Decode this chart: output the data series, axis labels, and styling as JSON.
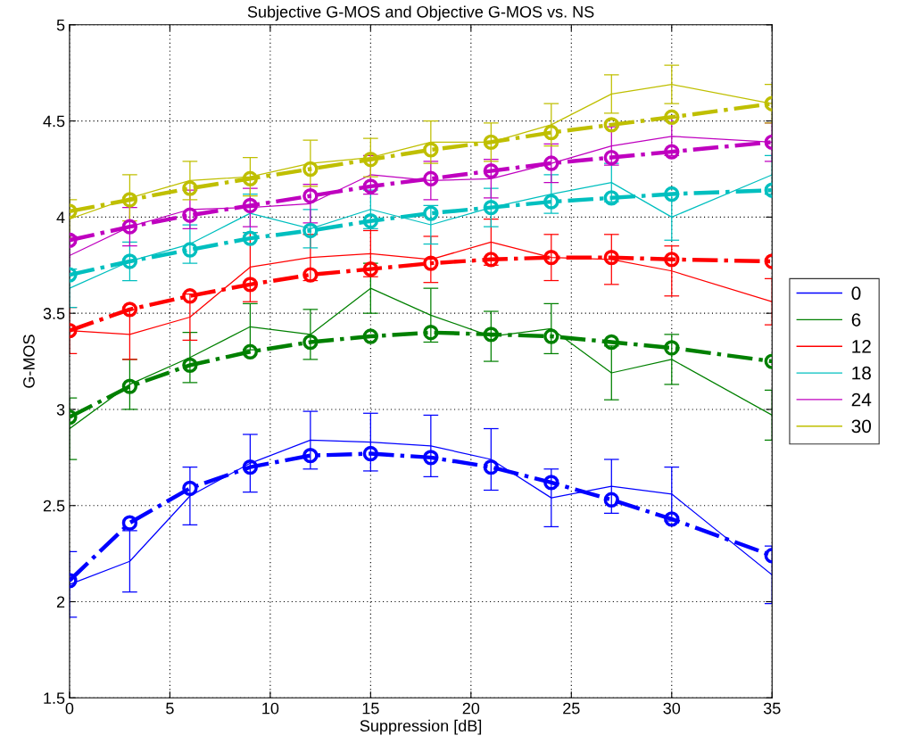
{
  "chart_data": {
    "type": "line",
    "title": "Subjective G-MOS and Objective G-MOS vs. NS",
    "xlabel": "Suppression [dB]",
    "ylabel": "G-MOS",
    "x": [
      0,
      3,
      6,
      9,
      12,
      15,
      18,
      21,
      24,
      27,
      30,
      35
    ],
    "xlim": [
      0,
      35
    ],
    "xticks": [
      0,
      5,
      10,
      15,
      20,
      25,
      30,
      35
    ],
    "ylim": [
      1.5,
      5
    ],
    "yticks": [
      1.5,
      2,
      2.5,
      3,
      3.5,
      4,
      4.5,
      5
    ],
    "grid": true,
    "legend": "right",
    "series": [
      {
        "name": "0",
        "color": "#0000ff",
        "line_style": "solid",
        "marker": "none",
        "values": [
          2.09,
          2.21,
          2.55,
          2.72,
          2.84,
          2.83,
          2.81,
          2.74,
          2.54,
          2.6,
          2.56,
          2.14
        ],
        "errors": [
          0.17,
          0.16,
          0.15,
          0.15,
          0.15,
          0.15,
          0.16,
          0.16,
          0.15,
          0.14,
          0.14,
          0.15
        ]
      },
      {
        "name": "6",
        "color": "#008000",
        "line_style": "solid",
        "marker": "none",
        "values": [
          2.9,
          3.13,
          3.27,
          3.43,
          3.39,
          3.63,
          3.49,
          3.38,
          3.42,
          3.19,
          3.26,
          2.97
        ],
        "errors": [
          0.16,
          0.13,
          0.13,
          0.12,
          0.13,
          0.13,
          0.14,
          0.13,
          0.13,
          0.14,
          0.13,
          0.13
        ]
      },
      {
        "name": "12",
        "color": "#ff0000",
        "line_style": "solid",
        "marker": "none",
        "values": [
          3.41,
          3.39,
          3.48,
          3.74,
          3.79,
          3.81,
          3.78,
          3.87,
          3.79,
          3.78,
          3.72,
          3.56
        ],
        "errors": [
          0.12,
          0.13,
          0.12,
          0.18,
          0.12,
          0.12,
          0.12,
          0.12,
          0.12,
          0.13,
          0.13,
          0.12
        ]
      },
      {
        "name": "18",
        "color": "#00bfbf",
        "line_style": "solid",
        "marker": "none",
        "values": [
          3.63,
          3.77,
          3.86,
          4.02,
          3.94,
          4.04,
          3.96,
          4.05,
          4.12,
          4.18,
          4.0,
          4.22
        ],
        "errors": [
          0.1,
          0.1,
          0.1,
          0.1,
          0.1,
          0.1,
          0.1,
          0.1,
          0.1,
          0.1,
          0.12,
          0.1
        ]
      },
      {
        "name": "24",
        "color": "#bf00bf",
        "line_style": "solid",
        "marker": "none",
        "values": [
          3.8,
          3.95,
          4.04,
          4.05,
          4.07,
          4.22,
          4.19,
          4.2,
          4.28,
          4.37,
          4.42,
          4.39
        ],
        "errors": [
          0.1,
          0.1,
          0.1,
          0.1,
          0.1,
          0.1,
          0.1,
          0.1,
          0.1,
          0.1,
          0.1,
          0.1
        ]
      },
      {
        "name": "30",
        "color": "#bfbf00",
        "line_style": "solid",
        "marker": "none",
        "values": [
          3.99,
          4.1,
          4.19,
          4.21,
          4.28,
          4.31,
          4.39,
          4.39,
          4.48,
          4.64,
          4.69,
          4.59
        ],
        "errors": [
          0.1,
          0.12,
          0.1,
          0.1,
          0.12,
          0.1,
          0.11,
          0.1,
          0.11,
          0.1,
          0.1,
          0.1
        ]
      },
      {
        "color": "#0000ff",
        "line_style": "dashdot",
        "marker": "circle",
        "values": [
          2.11,
          2.41,
          2.59,
          2.7,
          2.76,
          2.77,
          2.75,
          2.7,
          2.62,
          2.53,
          2.43,
          2.24
        ]
      },
      {
        "color": "#008000",
        "line_style": "dashdot",
        "marker": "circle",
        "values": [
          2.96,
          3.12,
          3.23,
          3.3,
          3.35,
          3.38,
          3.4,
          3.39,
          3.38,
          3.35,
          3.32,
          3.25
        ]
      },
      {
        "color": "#ff0000",
        "line_style": "dashdot",
        "marker": "circle",
        "values": [
          3.41,
          3.52,
          3.59,
          3.65,
          3.7,
          3.73,
          3.76,
          3.78,
          3.79,
          3.79,
          3.78,
          3.77
        ]
      },
      {
        "color": "#00bfbf",
        "line_style": "dashdot",
        "marker": "circle",
        "values": [
          3.7,
          3.77,
          3.83,
          3.89,
          3.93,
          3.98,
          4.02,
          4.05,
          4.08,
          4.1,
          4.12,
          4.14
        ]
      },
      {
        "color": "#bf00bf",
        "line_style": "dashdot",
        "marker": "circle",
        "values": [
          3.88,
          3.95,
          4.01,
          4.06,
          4.11,
          4.16,
          4.2,
          4.24,
          4.28,
          4.31,
          4.34,
          4.39
        ]
      },
      {
        "color": "#bfbf00",
        "line_style": "dashdot",
        "marker": "circle",
        "values": [
          4.03,
          4.09,
          4.15,
          4.2,
          4.25,
          4.3,
          4.35,
          4.39,
          4.44,
          4.48,
          4.52,
          4.59
        ]
      }
    ]
  }
}
